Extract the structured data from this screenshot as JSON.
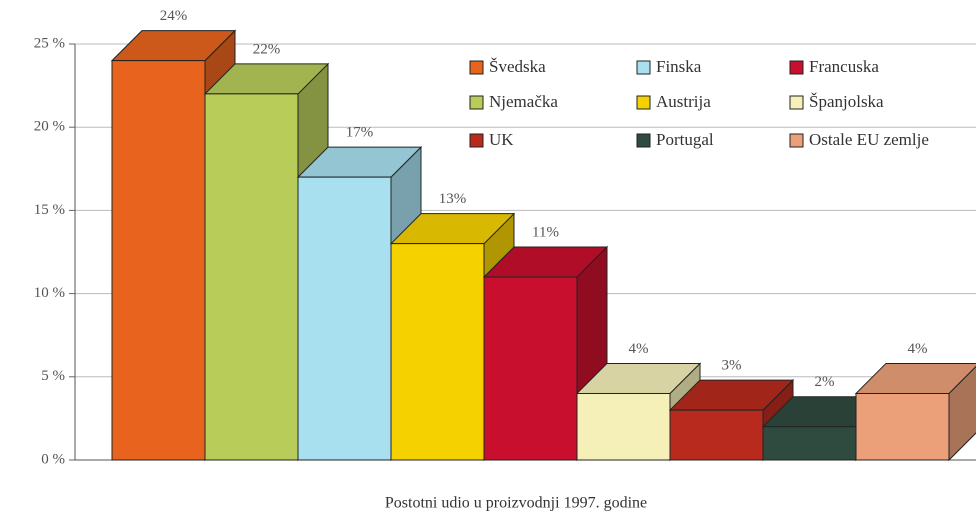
{
  "chart_data": {
    "type": "bar3d",
    "x_label": "Postotni udio u proizvodnji 1997. godine",
    "categories": [
      "Švedska",
      "Njemačka",
      "Finska",
      "Austrija",
      "Francuska",
      "Španjolska",
      "UK",
      "Portugal",
      "Ostale EU zemlje"
    ],
    "values": [
      24,
      22,
      17,
      13,
      11,
      4,
      3,
      2,
      4
    ],
    "value_labels": [
      "24%",
      "22%",
      "17%",
      "13%",
      "11%",
      "4%",
      "3%",
      "2%",
      "4%"
    ],
    "colors": [
      "#e8641e",
      "#b8cc5a",
      "#a8e0f0",
      "#f5d100",
      "#c8102e",
      "#f5f0b8",
      "#b82a1e",
      "#2f4a3f",
      "#eba07a"
    ],
    "ylim": [
      0,
      25
    ],
    "yticks": [
      {
        "value": 0,
        "label": "0 %"
      },
      {
        "value": 5,
        "label": "5 %"
      },
      {
        "value": 10,
        "label": "10 %"
      },
      {
        "value": 15,
        "label": "15 %"
      },
      {
        "value": 20,
        "label": "20 %"
      },
      {
        "value": 25,
        "label": "25 %"
      }
    ],
    "grid": true,
    "legend": "top-right"
  }
}
